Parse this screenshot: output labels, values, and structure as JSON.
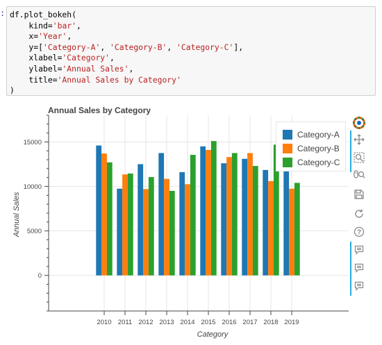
{
  "cell": {
    "prompt": ":",
    "lines": [
      [
        "df.plot_bokeh("
      ],
      [
        "    kind=",
        {
          "s": "'bar'"
        },
        ","
      ],
      [
        "    x=",
        {
          "s": "'Year'"
        },
        ","
      ],
      [
        "    y=[",
        {
          "s": "'Category-A'"
        },
        ", ",
        {
          "s": "'Category-B'"
        },
        ", ",
        {
          "s": "'Category-C'"
        },
        "],"
      ],
      [
        "    xlabel=",
        {
          "s": "'Category'"
        },
        ","
      ],
      [
        "    ylabel=",
        {
          "s": "'Annual Sales'"
        },
        ","
      ],
      [
        "    title=",
        {
          "s": "'Annual Sales by Category'"
        }
      ],
      [
        ")"
      ]
    ]
  },
  "chart_data": {
    "type": "bar",
    "title": "Annual Sales by Category",
    "xlabel": "Category",
    "ylabel": "Annual Sales",
    "categories": [
      "2010",
      "2011",
      "2012",
      "2013",
      "2014",
      "2015",
      "2016",
      "2017",
      "2018",
      "2019"
    ],
    "ylim": [
      -4000,
      18000
    ],
    "yticks": [
      0,
      5000,
      10000,
      15000
    ],
    "ytick_labels": [
      "0",
      "5000",
      "10000",
      "15000"
    ],
    "grid": true,
    "legend_position": "top-right",
    "series": [
      {
        "name": "Category-A",
        "color": "#1f77b4",
        "values": [
          14600,
          9750,
          12500,
          13750,
          11600,
          14500,
          12600,
          13100,
          11850,
          14100
        ]
      },
      {
        "name": "Category-B",
        "color": "#ff7f0e",
        "values": [
          13700,
          11350,
          9700,
          10850,
          10250,
          14100,
          13300,
          13750,
          10600,
          9750
        ]
      },
      {
        "name": "Category-C",
        "color": "#2ca02c",
        "values": [
          12700,
          11450,
          11050,
          9500,
          13550,
          15100,
          13750,
          12300,
          14700,
          10400
        ]
      }
    ]
  },
  "toolbar": {
    "tools": [
      {
        "name": "bokeh-logo-icon"
      },
      {
        "name": "pan-icon"
      },
      {
        "name": "box-zoom-icon"
      },
      {
        "name": "wheel-zoom-icon"
      },
      {
        "name": "save-icon"
      },
      {
        "name": "reset-icon"
      },
      {
        "name": "help-icon"
      },
      {
        "name": "hover-icon"
      },
      {
        "name": "hover-icon"
      },
      {
        "name": "hover-icon"
      }
    ]
  }
}
